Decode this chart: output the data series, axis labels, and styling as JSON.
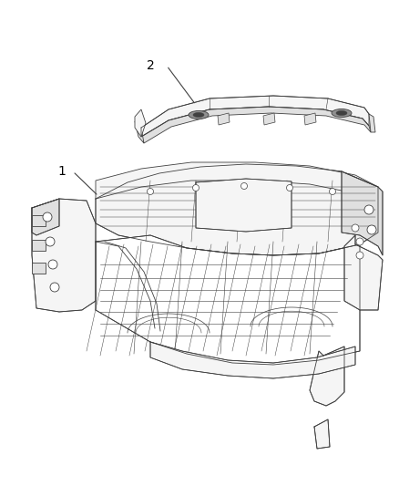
{
  "background_color": "#ffffff",
  "label_1": "1",
  "label_2": "2",
  "fig_width": 4.38,
  "fig_height": 5.33,
  "dpi": 100,
  "line_color": "#404040",
  "line_width": 0.6,
  "label_fontsize": 10,
  "fill_main": "#f5f5f5",
  "fill_dark": "#e0e0e0",
  "fill_white": "#ffffff"
}
